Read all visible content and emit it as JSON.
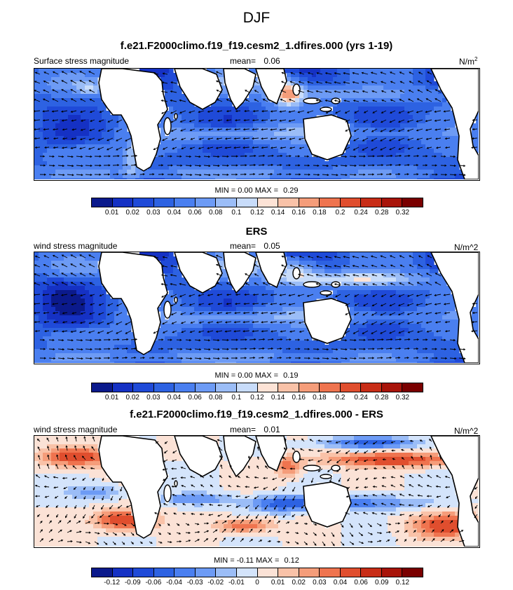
{
  "figure": {
    "title": "DJF"
  },
  "chart_data": [
    {
      "type": "heatmap",
      "title": "f.e21.F2000climo.f19_f19.cesm2_1.dfires.000 (yrs 1-19)",
      "left_label": "Surface stress magnitude",
      "mean_label": "mean=",
      "mean_value": "0.06",
      "units": "N/m",
      "units_sup": "2",
      "min_label": "MIN =",
      "min_value": "0.00",
      "max_label": "MAX =",
      "max_value": "0.29",
      "colorbar": {
        "levels": [
          "0.01",
          "0.02",
          "0.03",
          "0.04",
          "0.06",
          "0.08",
          "0.1",
          "0.12",
          "0.14",
          "0.16",
          "0.18",
          "0.2",
          "0.24",
          "0.28",
          "0.32"
        ],
        "colors": [
          "#0b1a8c",
          "#1531c4",
          "#1f4ad8",
          "#2d62e2",
          "#4a7ff0",
          "#6d9bf5",
          "#9bbdf7",
          "#c8dcfa",
          "#fde3d6",
          "#f9c2a8",
          "#f59d7a",
          "#ef744f",
          "#e04e2e",
          "#c82d17",
          "#a8140a",
          "#7a0000"
        ]
      },
      "field_mode": "abs"
    },
    {
      "type": "heatmap",
      "title": "ERS",
      "left_label": "wind stress magnitude",
      "mean_label": "mean=",
      "mean_value": "0.05",
      "units": "N/m^2",
      "min_label": "MIN =",
      "min_value": "0.00",
      "max_label": "MAX =",
      "max_value": "0.19",
      "colorbar": {
        "levels": [
          "0.01",
          "0.02",
          "0.03",
          "0.04",
          "0.06",
          "0.08",
          "0.1",
          "0.12",
          "0.14",
          "0.16",
          "0.18",
          "0.2",
          "0.24",
          "0.28",
          "0.32"
        ],
        "colors": [
          "#0b1a8c",
          "#1531c4",
          "#1f4ad8",
          "#2d62e2",
          "#4a7ff0",
          "#6d9bf5",
          "#9bbdf7",
          "#c8dcfa",
          "#fde3d6",
          "#f9c2a8",
          "#f59d7a",
          "#ef744f",
          "#e04e2e",
          "#c82d17",
          "#a8140a",
          "#7a0000"
        ]
      },
      "field_mode": "abs"
    },
    {
      "type": "heatmap",
      "title": "f.e21.F2000climo.f19_f19.cesm2_1.dfires.000 - ERS",
      "left_label": "wind stress magnitude",
      "mean_label": "mean=",
      "mean_value": "0.01",
      "units": "N/m^2",
      "min_label": "MIN =",
      "min_value": "-0.11",
      "max_label": "MAX =",
      "max_value": "0.12",
      "colorbar": {
        "levels": [
          "-0.12",
          "-0.09",
          "-0.06",
          "-0.04",
          "-0.03",
          "-0.02",
          "-0.01",
          "0",
          "0.01",
          "0.02",
          "0.03",
          "0.04",
          "0.06",
          "0.09",
          "0.12"
        ],
        "colors": [
          "#0b1a8c",
          "#1531c4",
          "#1f4ad8",
          "#2d62e2",
          "#4a7ff0",
          "#6d9bf5",
          "#9bbdf7",
          "#d4e4fb",
          "#fbe2d6",
          "#f9c2a8",
          "#f59d7a",
          "#ef744f",
          "#e04e2e",
          "#c82d17",
          "#a8140a",
          "#7a0000"
        ]
      },
      "field_mode": "diff"
    }
  ]
}
